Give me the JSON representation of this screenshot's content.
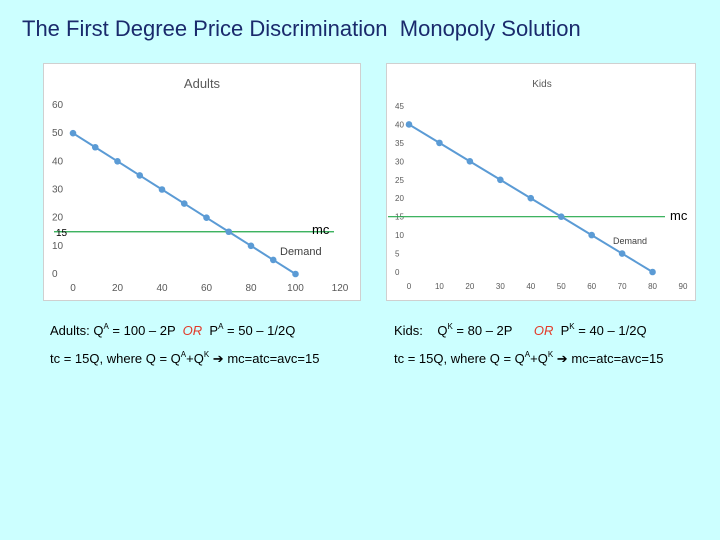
{
  "slide": {
    "title": "The First Degree Price Discrimination  Monopoly Solution"
  },
  "chart_data": [
    {
      "type": "line",
      "title": "Adults",
      "xlim": [
        0,
        120
      ],
      "ylim": [
        0,
        60
      ],
      "x_ticks": [
        0,
        20,
        40,
        60,
        80,
        100,
        120
      ],
      "y_ticks": [
        0,
        10,
        20,
        30,
        40,
        50,
        60
      ],
      "grid": false,
      "series": [
        {
          "name": "Demand",
          "color": "#5b9bd5",
          "x": [
            0,
            10,
            20,
            30,
            40,
            50,
            60,
            70,
            80,
            90,
            100
          ],
          "y": [
            50,
            45,
            40,
            35,
            30,
            25,
            20,
            15,
            10,
            5,
            0
          ]
        },
        {
          "name": "mc",
          "color": "#22a84a",
          "x": [
            -10,
            120
          ],
          "y": [
            15,
            15
          ]
        }
      ],
      "annotations": {
        "mc_level": "15"
      }
    },
    {
      "type": "line",
      "title": "Kids",
      "xlim": [
        0,
        90
      ],
      "ylim": [
        0,
        45
      ],
      "x_ticks": [
        0,
        10,
        20,
        30,
        40,
        50,
        60,
        70,
        80,
        90
      ],
      "y_ticks": [
        0,
        5,
        10,
        15,
        20,
        25,
        30,
        35,
        40,
        45
      ],
      "grid": false,
      "series": [
        {
          "name": "Demand",
          "color": "#5b9bd5",
          "x": [
            0,
            10,
            20,
            30,
            40,
            50,
            60,
            70,
            80
          ],
          "y": [
            40,
            35,
            30,
            25,
            20,
            15,
            10,
            5,
            0
          ]
        },
        {
          "name": "mc",
          "color": "#22a84a",
          "x": [
            -10,
            90
          ],
          "y": [
            15,
            15
          ]
        }
      ]
    }
  ],
  "adults_eq": {
    "line1_prefix": "Adults: Q",
    "line1_sup1": "A",
    "line1_mid": " = 100 – 2P  ",
    "or": "OR",
    "line1_p": "  P",
    "line1_sup2": "A",
    "line1_end": " = 50 – 1/2Q",
    "line2_a": "tc = 15Q, where Q = Q",
    "line2_sup1": "A",
    "line2_b": "+Q",
    "line2_sup2": "K",
    "arrow": " ➔ ",
    "line2_end": "mc=atc=avc=15"
  },
  "kids_eq": {
    "line1_prefix": "Kids:    Q",
    "line1_sup1": "K",
    "line1_mid": " = 80 – 2P      ",
    "or": "OR",
    "line1_p": "  P",
    "line1_sup2": "K",
    "line1_end": " = 40 – 1/2Q",
    "line2_a": "tc = 15Q, where Q = Q",
    "line2_sup1": "A",
    "line2_b": "+Q",
    "line2_sup2": "K",
    "arrow": " ➔ ",
    "line2_end": "mc=atc=avc=15"
  }
}
